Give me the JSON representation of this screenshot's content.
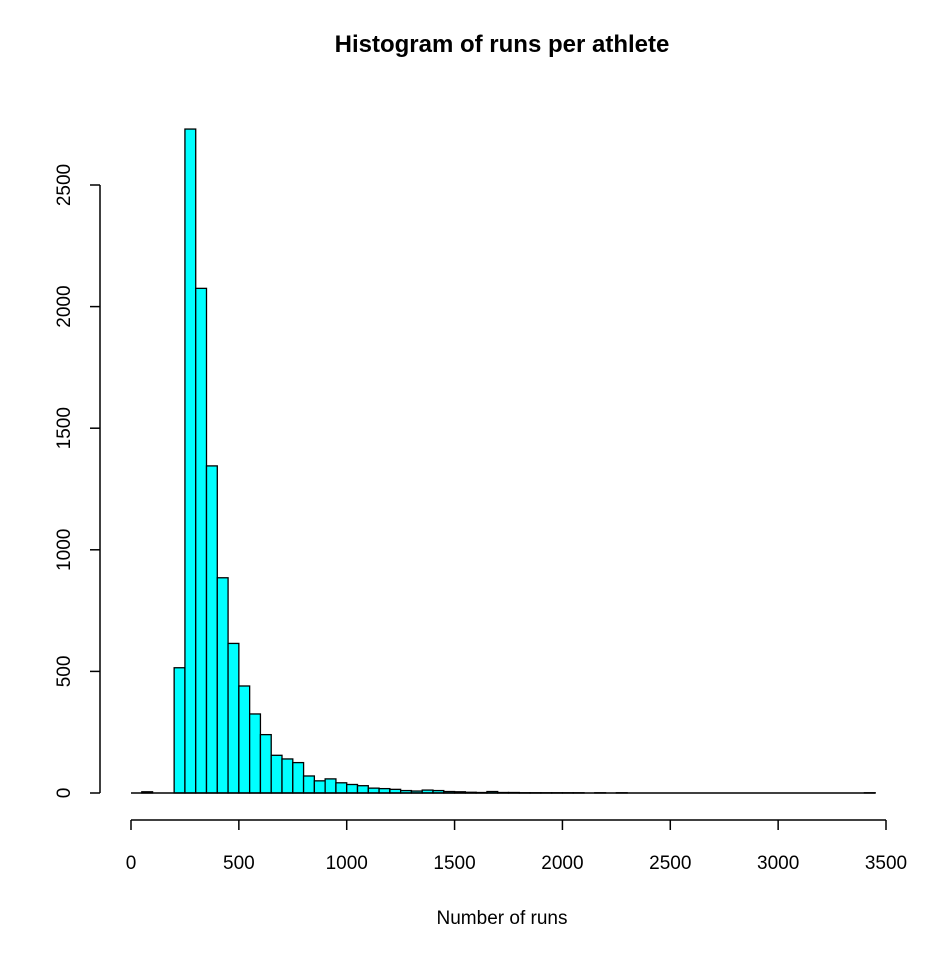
{
  "chart_data": {
    "type": "bar",
    "title": "Histogram of runs per athlete",
    "xlabel": "Number of runs",
    "ylabel": "",
    "bar_color": "#00ffff",
    "bin_width": 50,
    "xlim": [
      0,
      3500
    ],
    "ylim": [
      0,
      2700
    ],
    "x_ticks": [
      0,
      500,
      1000,
      1500,
      2000,
      2500,
      3000,
      3500
    ],
    "y_ticks": [
      0,
      500,
      1000,
      1500,
      2000,
      2500
    ],
    "bins_start": 0,
    "values": [
      0,
      5,
      0,
      0,
      515,
      2730,
      2075,
      1345,
      885,
      615,
      440,
      325,
      240,
      155,
      140,
      125,
      70,
      50,
      58,
      42,
      35,
      30,
      20,
      18,
      15,
      10,
      8,
      12,
      10,
      6,
      5,
      3,
      2,
      6,
      2,
      2,
      1,
      1,
      1,
      1,
      1,
      1,
      0,
      1,
      0,
      1,
      0,
      0,
      0,
      0,
      0,
      0,
      0,
      0,
      0,
      0,
      0,
      0,
      0,
      0,
      0,
      0,
      0,
      0,
      0,
      0,
      0,
      0,
      1
    ],
    "grid": false
  }
}
